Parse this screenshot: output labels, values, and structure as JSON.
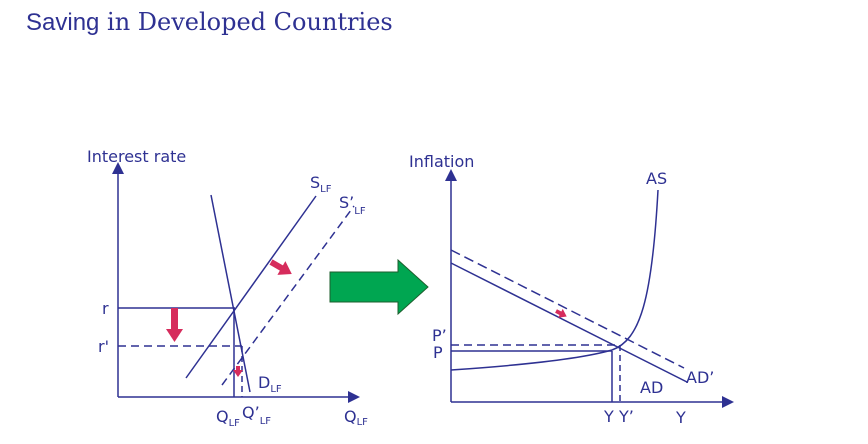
{
  "title": {
    "part1": "Saving",
    "part2": " in Developed Countries"
  },
  "colors": {
    "ink": "#2e3192",
    "arrow_shift": "#d62c5c",
    "big_arrow": "#00a651"
  },
  "loanable_funds": {
    "y_axis_label": "Interest rate",
    "x_axis_label": "Q",
    "x_axis_sub": "LF",
    "supply": "S",
    "supply_sub": "LF",
    "supply_new": "S’",
    "supply_new_sub": "LF",
    "demand": "D",
    "demand_sub": "LF",
    "rate": "r",
    "rate_new": "r'",
    "quantity": "Q",
    "quantity_sub": "LF",
    "quantity_new": "Q’",
    "quantity_new_sub": "LF"
  },
  "ad_as": {
    "y_axis_label": "Inflation",
    "x_axis_label": "Y",
    "as": "AS",
    "ad": "AD",
    "ad_new": "AD’",
    "price": "P",
    "price_new": "P’",
    "output": "Y",
    "output_new": "Y’"
  }
}
